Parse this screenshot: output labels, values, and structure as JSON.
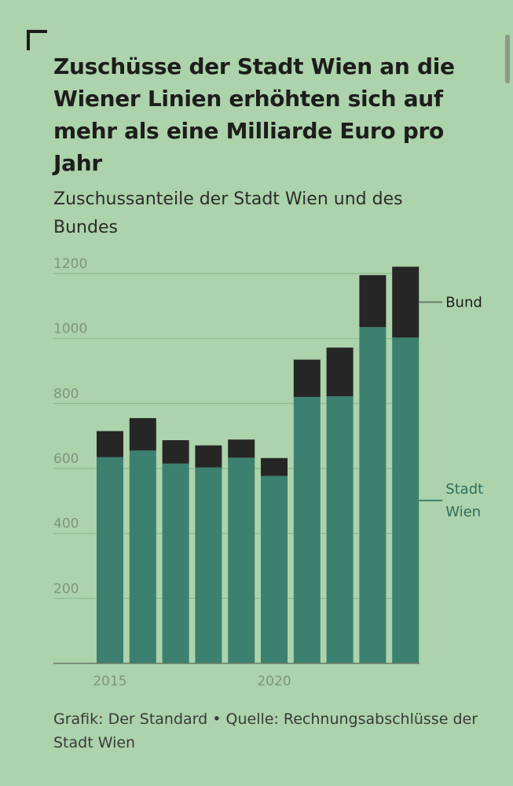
{
  "title": "Zuschüsse der Stadt Wien an die Wiener Linien erhöhten sich auf mehr als eine Milliarde Euro pro Jahr",
  "subtitle": "Zuschussanteile der Stadt Wien und des Bundes",
  "footer": {
    "credit": "Grafik: Der Standard",
    "separator": "•",
    "source": "Quelle: Rechnungsabschlüsse der Stadt Wien"
  },
  "colors": {
    "background": "#acd3ab",
    "stadt_wien": "#3c8070",
    "bund": "#262626",
    "grid": "#8fb88e",
    "axis_text": "#7f957d",
    "axis_line": "#6a7a68"
  },
  "chart_data": {
    "type": "bar",
    "stacked": true,
    "x": [
      2015,
      2016,
      2017,
      2018,
      2019,
      2020,
      2021,
      2022,
      2023,
      2024
    ],
    "x_tick_labels": [
      "2015",
      "2020"
    ],
    "x_tick_values": [
      2015,
      2020
    ],
    "ylim": [
      0,
      1200
    ],
    "y_ticks": [
      200,
      400,
      600,
      800,
      1000,
      1200
    ],
    "y_tick_labels": [
      "200",
      "400",
      "600",
      "800",
      "1000",
      "1200"
    ],
    "grid": true,
    "legend_placement": "direct labels right of last bar",
    "series": [
      {
        "name": "Stadt Wien",
        "label_lines": [
          "Stadt",
          "Wien"
        ],
        "color": "#3c8070",
        "values": [
          635,
          655,
          615,
          603,
          633,
          577,
          820,
          822,
          1035,
          1003
        ]
      },
      {
        "name": "Bund",
        "label_lines": [
          "Bund"
        ],
        "color": "#262626",
        "values": [
          80,
          100,
          72,
          68,
          56,
          55,
          115,
          150,
          160,
          218
        ]
      }
    ]
  }
}
